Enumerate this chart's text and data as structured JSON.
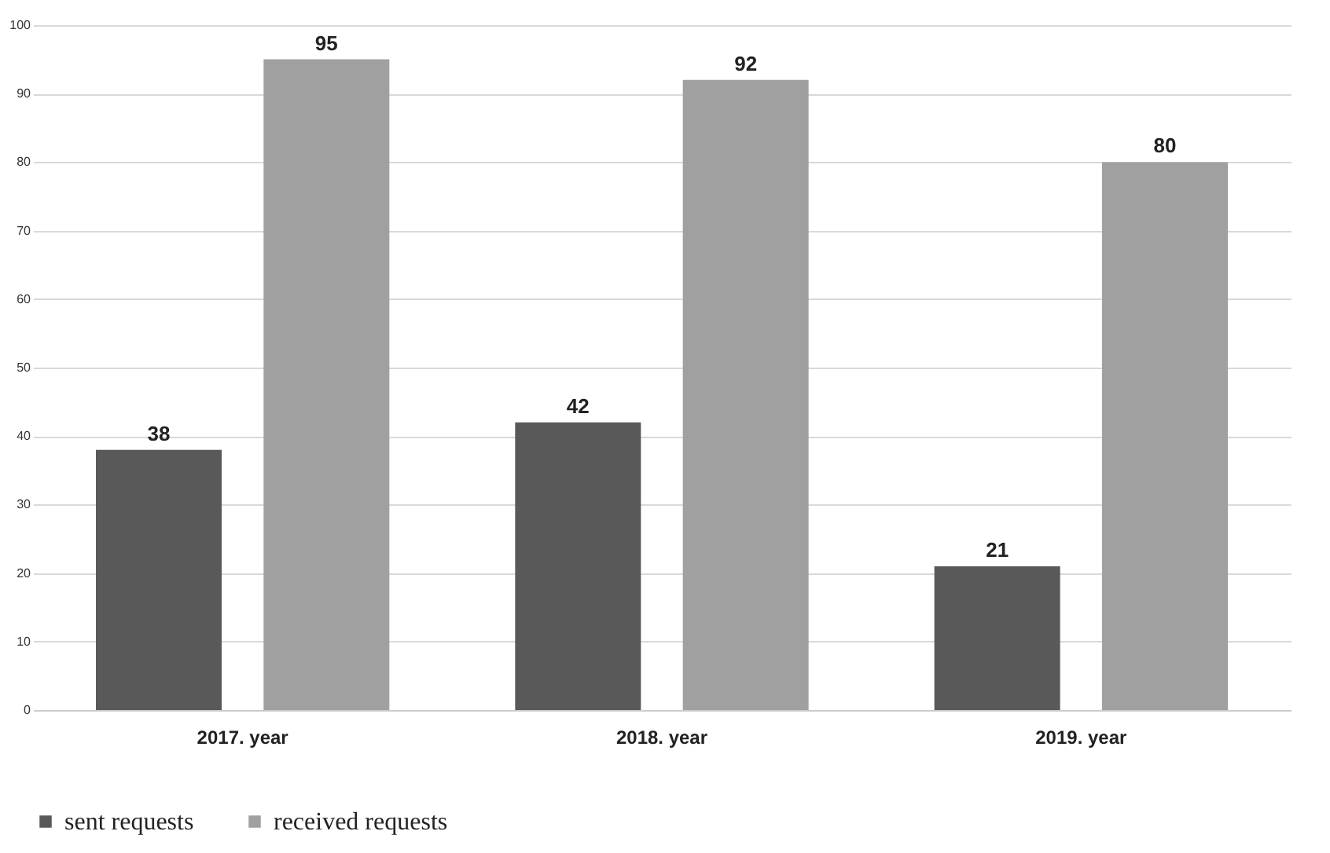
{
  "chart_data": {
    "type": "bar",
    "categories": [
      "2017. year",
      "2018. year",
      "2019. year"
    ],
    "series": [
      {
        "name": "sent requests",
        "color": "#595959",
        "values": [
          38,
          42,
          21
        ]
      },
      {
        "name": "received requests",
        "color": "#a0a0a0",
        "values": [
          95,
          92,
          80
        ]
      }
    ],
    "ylim": [
      0,
      100
    ],
    "yticks": [
      0,
      10,
      20,
      30,
      40,
      50,
      60,
      70,
      80,
      90,
      100
    ],
    "grid": "y",
    "legend": "bottom",
    "data_labels": true
  }
}
